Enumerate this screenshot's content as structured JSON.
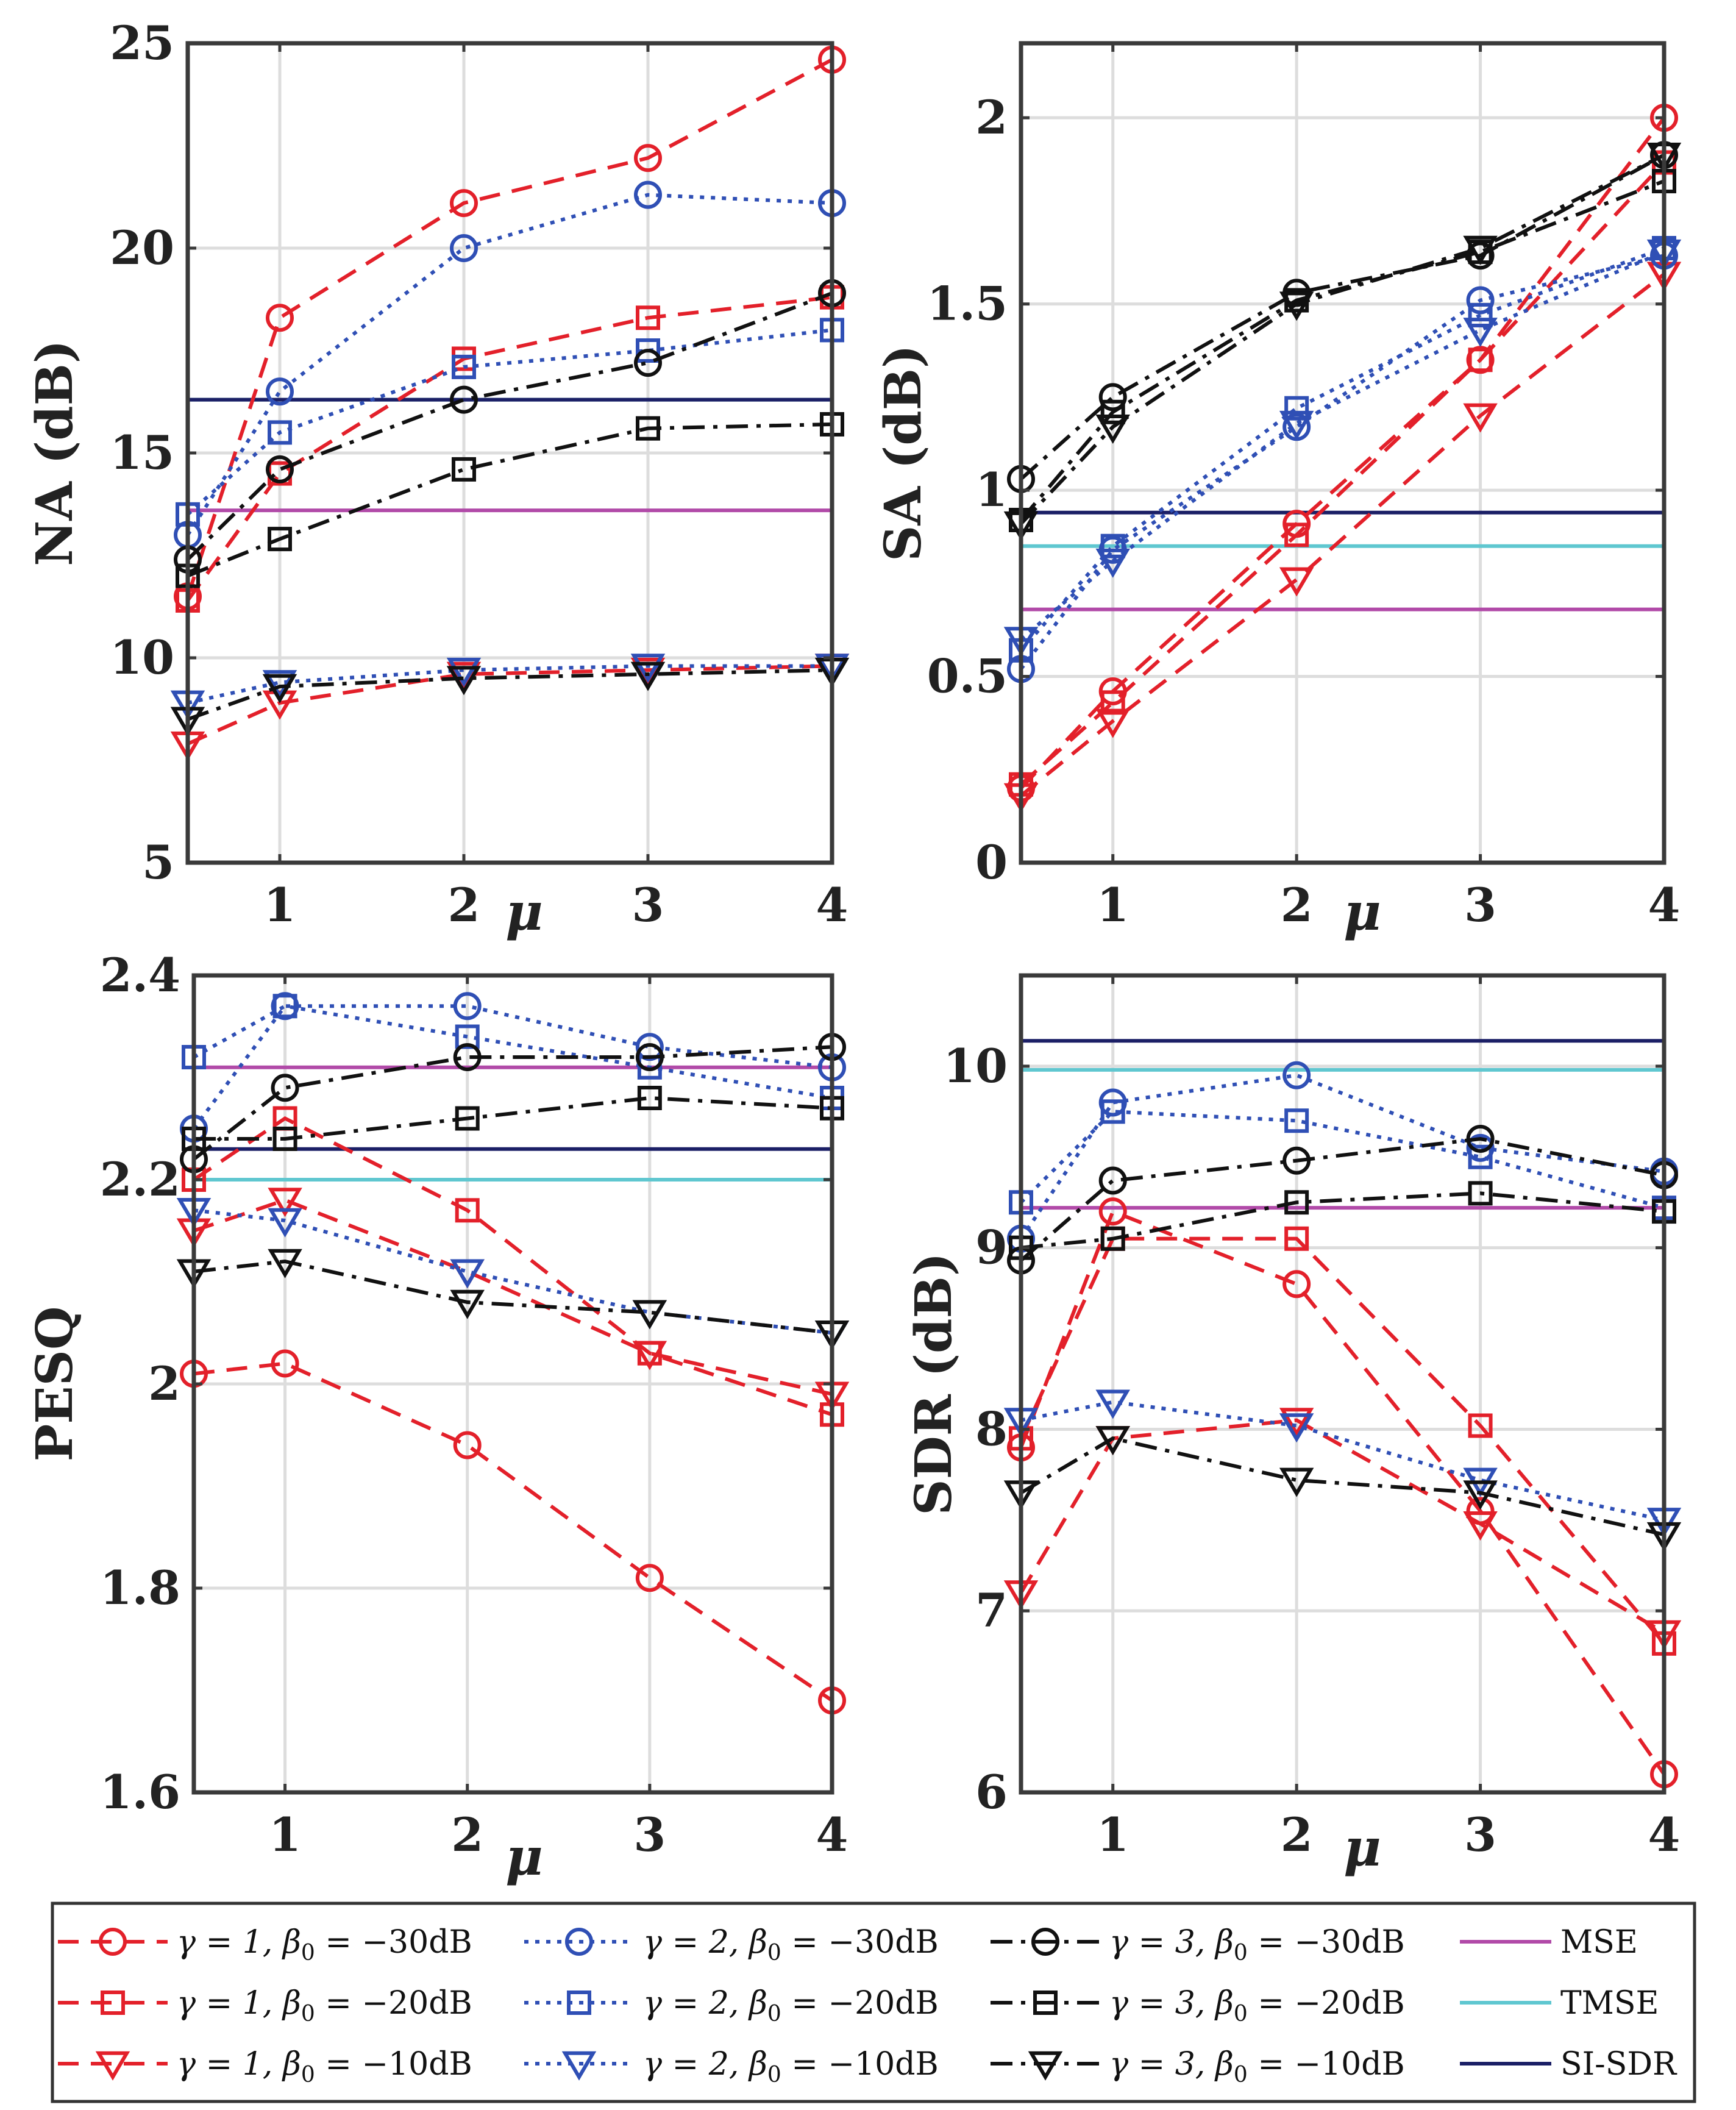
{
  "colors": {
    "red": "#e3202a",
    "blue": "#2f4fb5",
    "black": "#111111",
    "mse": "#b14aa8",
    "tmse": "#5fc7d0",
    "sisdr": "#1b1f66",
    "axis": "#3a3a3a",
    "grid": "#dddddd"
  },
  "series_styles": [
    {
      "name": "γ = 1, β0 = −30dB",
      "label_gamma": "γ = 1, ",
      "label_beta": "β",
      "label_sub": "0",
      "label_value": " = −30dB",
      "color": "red",
      "dash": "dashed",
      "marker": "circle"
    },
    {
      "name": "γ = 1, β0 = −20dB",
      "label_gamma": "γ = 1, ",
      "label_beta": "β",
      "label_sub": "0",
      "label_value": " = −20dB",
      "color": "red",
      "dash": "dashed",
      "marker": "square"
    },
    {
      "name": "γ = 1, β0 = −10dB",
      "label_gamma": "γ = 1, ",
      "label_beta": "β",
      "label_sub": "0",
      "label_value": " = −10dB",
      "color": "red",
      "dash": "dashed",
      "marker": "triangle"
    },
    {
      "name": "γ = 2, β0 = −30dB",
      "label_gamma": "γ = 2, ",
      "label_beta": "β",
      "label_sub": "0",
      "label_value": " = −30dB",
      "color": "blue",
      "dash": "dotted",
      "marker": "circle"
    },
    {
      "name": "γ = 2, β0 = −20dB",
      "label_gamma": "γ = 2, ",
      "label_beta": "β",
      "label_sub": "0",
      "label_value": " = −20dB",
      "color": "blue",
      "dash": "dotted",
      "marker": "square"
    },
    {
      "name": "γ = 2, β0 = −10dB",
      "label_gamma": "γ = 2, ",
      "label_beta": "β",
      "label_sub": "0",
      "label_value": " = −10dB",
      "color": "blue",
      "dash": "dotted",
      "marker": "triangle"
    },
    {
      "name": "γ = 3, β0 = −30dB",
      "label_gamma": "γ = 3, ",
      "label_beta": "β",
      "label_sub": "0",
      "label_value": " = −30dB",
      "color": "black",
      "dash": "dashdot",
      "marker": "circle"
    },
    {
      "name": "γ = 3, β0 = −20dB",
      "label_gamma": "γ = 3, ",
      "label_beta": "β",
      "label_sub": "0",
      "label_value": " = −20dB",
      "color": "black",
      "dash": "dashdot",
      "marker": "square"
    },
    {
      "name": "γ = 3, β0 = −10dB",
      "label_gamma": "γ = 3, ",
      "label_beta": "β",
      "label_sub": "0",
      "label_value": " = −10dB",
      "color": "black",
      "dash": "dashdot",
      "marker": "triangle"
    }
  ],
  "baselines": [
    {
      "name": "MSE",
      "color": "mse"
    },
    {
      "name": "TMSE",
      "color": "tmse"
    },
    {
      "name": "SI-SDR",
      "color": "sisdr"
    }
  ],
  "chart_data": [
    {
      "type": "line",
      "ylabel": "NA (dB)",
      "xlabel": "μ",
      "x": [
        0.5,
        1,
        2,
        3,
        4
      ],
      "xlim": [
        0.5,
        4
      ],
      "xticks": [
        1,
        2,
        3,
        4
      ],
      "ylim": [
        5,
        25
      ],
      "yticks": [
        5,
        10,
        15,
        20,
        25
      ],
      "grid": true,
      "series": [
        {
          "name": "γ = 1, β0 = −30dB",
          "values": [
            11.5,
            18.3,
            21.1,
            22.2,
            24.6
          ]
        },
        {
          "name": "γ = 1, β0 = −20dB",
          "values": [
            11.4,
            14.5,
            17.3,
            18.3,
            18.8
          ]
        },
        {
          "name": "γ = 1, β0 = −10dB",
          "values": [
            7.9,
            8.9,
            9.6,
            9.7,
            9.8
          ]
        },
        {
          "name": "γ = 2, β0 = −30dB",
          "values": [
            13.0,
            16.5,
            20.0,
            21.3,
            21.1
          ]
        },
        {
          "name": "γ = 2, β0 = −20dB",
          "values": [
            13.5,
            15.5,
            17.1,
            17.5,
            18.0
          ]
        },
        {
          "name": "γ = 2, β0 = −10dB",
          "values": [
            8.9,
            9.4,
            9.7,
            9.8,
            9.8
          ]
        },
        {
          "name": "γ = 3, β0 = −30dB",
          "values": [
            12.4,
            14.6,
            16.3,
            17.2,
            18.9
          ]
        },
        {
          "name": "γ = 3, β0 = −20dB",
          "values": [
            12.0,
            12.9,
            14.6,
            15.6,
            15.7
          ]
        },
        {
          "name": "γ = 3, β0 = −10dB",
          "values": [
            8.5,
            9.3,
            9.5,
            9.6,
            9.7
          ]
        }
      ],
      "baselines": {
        "MSE": 13.6,
        "TMSE": 16.3,
        "SI-SDR": 16.3
      }
    },
    {
      "type": "line",
      "ylabel": "SA (dB)",
      "xlabel": "μ",
      "x": [
        0.5,
        1,
        2,
        3,
        4
      ],
      "xlim": [
        0.5,
        4
      ],
      "xticks": [
        1,
        2,
        3,
        4
      ],
      "ylim": [
        0,
        2.2
      ],
      "yticks": [
        0,
        0.5,
        1,
        1.5,
        2
      ],
      "grid": true,
      "series": [
        {
          "name": "γ = 1, β0 = −30dB",
          "values": [
            0.2,
            0.46,
            0.91,
            1.35,
            2.0
          ]
        },
        {
          "name": "γ = 1, β0 = −20dB",
          "values": [
            0.21,
            0.43,
            0.88,
            1.35,
            1.88
          ]
        },
        {
          "name": "γ = 1, β0 = −10dB",
          "values": [
            0.18,
            0.38,
            0.76,
            1.2,
            1.58
          ]
        },
        {
          "name": "γ = 2, β0 = −30dB",
          "values": [
            0.52,
            0.84,
            1.17,
            1.51,
            1.63
          ]
        },
        {
          "name": "γ = 2, β0 = −20dB",
          "values": [
            0.57,
            0.85,
            1.22,
            1.47,
            1.65
          ]
        },
        {
          "name": "γ = 2, β0 = −10dB",
          "values": [
            0.6,
            0.81,
            1.18,
            1.43,
            1.64
          ]
        },
        {
          "name": "γ = 3, β0 = −30dB",
          "values": [
            1.03,
            1.25,
            1.53,
            1.63,
            1.9
          ]
        },
        {
          "name": "γ = 3, β0 = −20dB",
          "values": [
            0.92,
            1.21,
            1.51,
            1.64,
            1.83
          ]
        },
        {
          "name": "γ = 3, β0 = −10dB",
          "values": [
            0.91,
            1.17,
            1.5,
            1.65,
            1.9
          ]
        }
      ],
      "baselines": {
        "MSE": 0.68,
        "TMSE": 0.85,
        "SI-SDR": 0.94
      }
    },
    {
      "type": "line",
      "ylabel": "PESQ",
      "xlabel": "μ",
      "x": [
        0.5,
        1,
        2,
        3,
        4
      ],
      "xlim": [
        0.5,
        4
      ],
      "xticks": [
        1,
        2,
        3,
        4
      ],
      "ylim": [
        1.6,
        2.4
      ],
      "yticks": [
        1.6,
        1.8,
        2,
        2.2,
        2.4
      ],
      "ytick_labels": [
        "1.6",
        "1.8",
        "2",
        "2.2",
        "2.4"
      ],
      "grid": true,
      "series": [
        {
          "name": "γ = 1, β0 = −30dB",
          "values": [
            2.01,
            2.02,
            1.94,
            1.81,
            1.69
          ]
        },
        {
          "name": "γ = 1, β0 = −20dB",
          "values": [
            2.2,
            2.26,
            2.17,
            2.03,
            1.97
          ]
        },
        {
          "name": "γ = 1, β0 = −10dB",
          "values": [
            2.15,
            2.18,
            2.11,
            2.03,
            1.99
          ]
        },
        {
          "name": "γ = 2, β0 = −30dB",
          "values": [
            2.25,
            2.37,
            2.37,
            2.33,
            2.31
          ]
        },
        {
          "name": "γ = 2, β0 = −20dB",
          "values": [
            2.32,
            2.37,
            2.34,
            2.31,
            2.28
          ]
        },
        {
          "name": "γ = 2, β0 = −10dB",
          "values": [
            2.17,
            2.16,
            2.11,
            2.07,
            2.05
          ]
        },
        {
          "name": "γ = 3, β0 = −30dB",
          "values": [
            2.22,
            2.29,
            2.32,
            2.32,
            2.33
          ]
        },
        {
          "name": "γ = 3, β0 = −20dB",
          "values": [
            2.24,
            2.24,
            2.26,
            2.28,
            2.27
          ]
        },
        {
          "name": "γ = 3, β0 = −10dB",
          "values": [
            2.11,
            2.12,
            2.08,
            2.07,
            2.05
          ]
        }
      ],
      "baselines": {
        "MSE": 2.31,
        "TMSE": 2.2,
        "SI-SDR": 2.23
      }
    },
    {
      "type": "line",
      "ylabel": "SDR (dB)",
      "xlabel": "μ",
      "x": [
        0.5,
        1,
        2,
        3,
        4
      ],
      "xlim": [
        0.5,
        4
      ],
      "xticks": [
        1,
        2,
        3,
        4
      ],
      "ylim": [
        6,
        10.5
      ],
      "yticks": [
        6,
        7,
        8,
        9,
        10
      ],
      "grid": true,
      "series": [
        {
          "name": "γ = 1, β0 = −30dB",
          "values": [
            7.9,
            9.2,
            8.8,
            7.55,
            6.1
          ]
        },
        {
          "name": "γ = 1, β0 = −20dB",
          "values": [
            7.95,
            9.05,
            9.05,
            8.02,
            6.82
          ]
        },
        {
          "name": "γ = 1, β0 = −10dB",
          "values": [
            7.1,
            7.95,
            8.05,
            7.48,
            6.88
          ]
        },
        {
          "name": "γ = 2, β0 = −30dB",
          "values": [
            9.05,
            9.8,
            9.95,
            9.55,
            9.42
          ]
        },
        {
          "name": "γ = 2, β0 = −20dB",
          "values": [
            9.25,
            9.75,
            9.7,
            9.5,
            9.22
          ]
        },
        {
          "name": "γ = 2, β0 = −10dB",
          "values": [
            8.05,
            8.15,
            8.02,
            7.72,
            7.5
          ]
        },
        {
          "name": "γ = 3, β0 = −30dB",
          "values": [
            8.93,
            9.37,
            9.48,
            9.6,
            9.4
          ]
        },
        {
          "name": "γ = 3, β0 = −20dB",
          "values": [
            9.0,
            9.05,
            9.25,
            9.3,
            9.2
          ]
        },
        {
          "name": "γ = 3, β0 = −10dB",
          "values": [
            7.65,
            7.95,
            7.72,
            7.65,
            7.42
          ]
        }
      ],
      "baselines": {
        "MSE": 9.22,
        "TMSE": 9.98,
        "SI-SDR": 10.14
      }
    }
  ]
}
